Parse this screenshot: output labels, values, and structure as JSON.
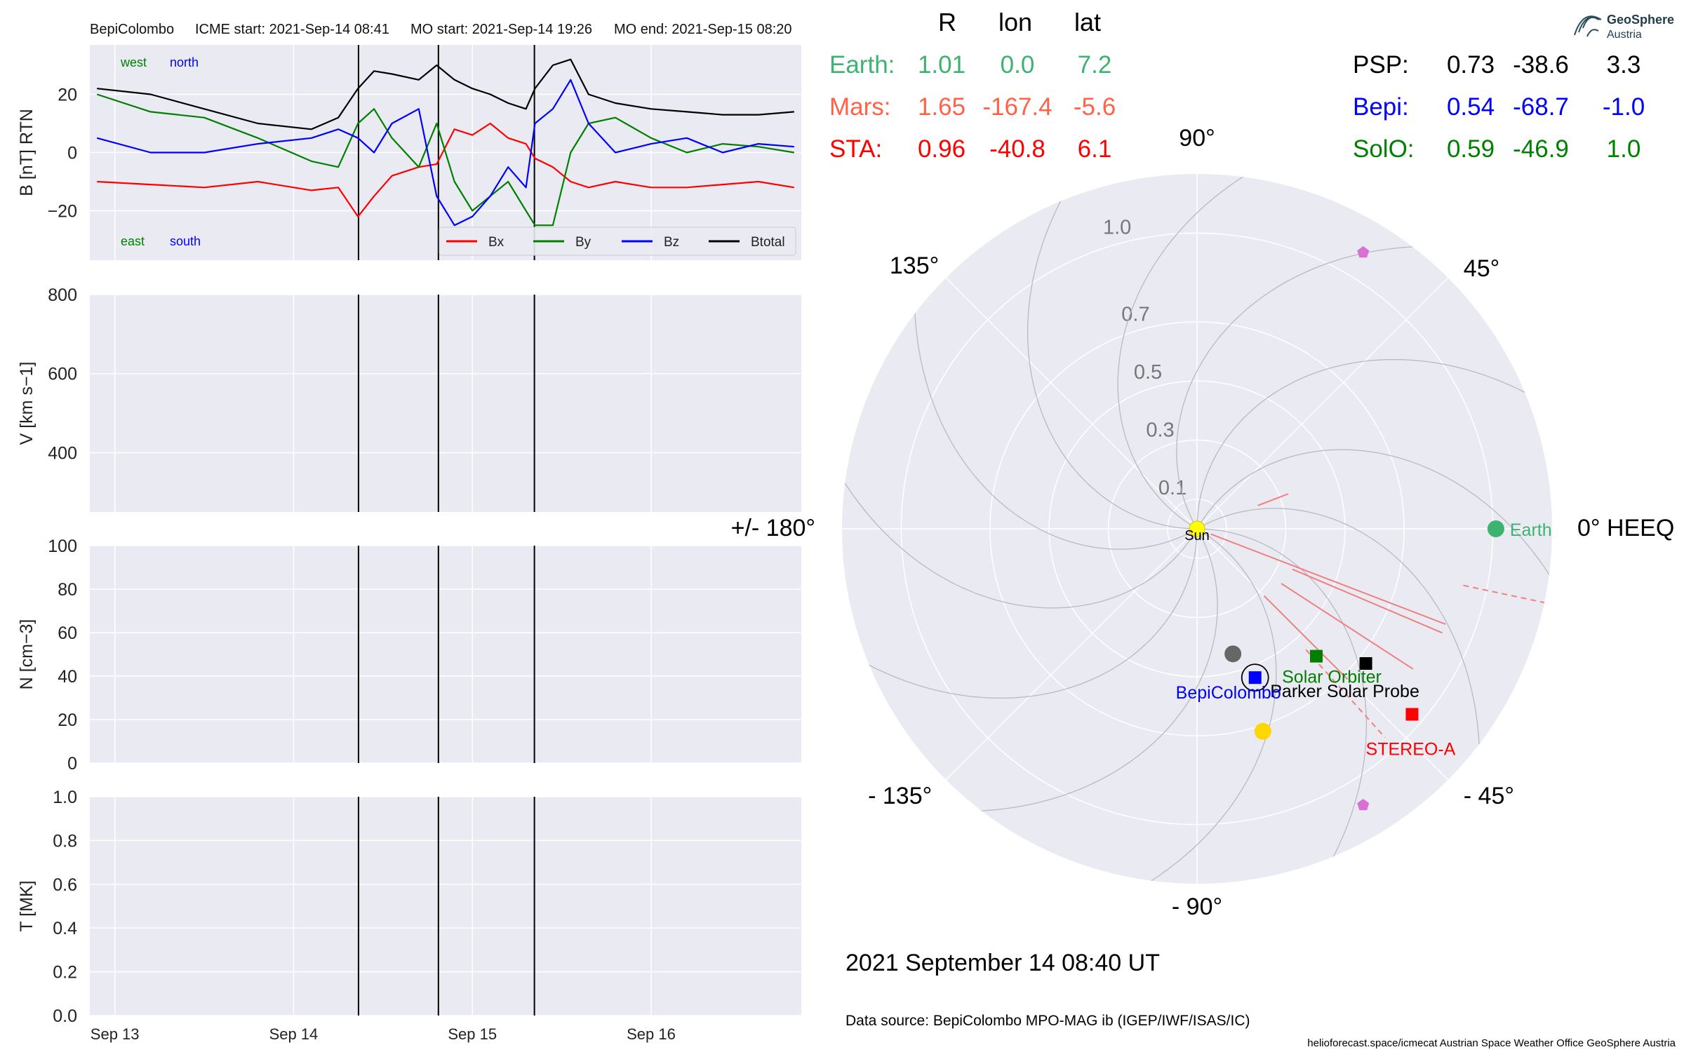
{
  "header": {
    "spacecraft": "BepiColombo",
    "icme_start": "ICME start: 2021-Sep-14 08:41",
    "mo_start": "MO start: 2021-Sep-14 19:26",
    "mo_end": "MO end: 2021-Sep-15 08:20"
  },
  "colors": {
    "panel_bg": "#eaeaf2",
    "grid": "#ffffff",
    "bx": "#ff0000",
    "by": "#008000",
    "bz": "#0000ff",
    "btotal": "#000000",
    "earth": "#3cb371",
    "mars": "#ff6347",
    "sta": "#ff0000",
    "psp": "#000000",
    "bepi": "#0000ff",
    "solo": "#008000",
    "sun": "#ffff00",
    "planet": "#da70d6"
  },
  "chart_data": [
    {
      "type": "line",
      "name": "B field",
      "ylabel": "B [nT] RTN",
      "ylim": [
        -37,
        37
      ],
      "yticks": [
        "20",
        "0",
        "−20"
      ],
      "ytick_values": [
        20,
        0,
        -20
      ],
      "xlim_days": [
        12.86,
        16.84
      ],
      "xticks": [
        "Sep 13",
        "Sep 14",
        "Sep 15",
        "Sep 16"
      ],
      "xtick_days": [
        13,
        14,
        15,
        16
      ],
      "annotations": {
        "west": "west",
        "north": "north",
        "east": "east",
        "south": "south"
      },
      "legend": [
        "Bx",
        "By",
        "Bz",
        "Btotal"
      ],
      "legend_position": "lower right",
      "event_lines_days": [
        14.363,
        14.81,
        15.347
      ],
      "series": [
        {
          "name": "Bx",
          "x": [
            12.9,
            13.2,
            13.5,
            13.8,
            14.1,
            14.25,
            14.36,
            14.45,
            14.55,
            14.7,
            14.8,
            14.9,
            15.0,
            15.1,
            15.2,
            15.3,
            15.35,
            15.45,
            15.55,
            15.65,
            15.8,
            16.0,
            16.2,
            16.4,
            16.6,
            16.8
          ],
          "y": [
            -10,
            -11,
            -12,
            -10,
            -13,
            -12,
            -22,
            -15,
            -8,
            -5,
            -4,
            8,
            6,
            10,
            5,
            3,
            -2,
            -5,
            -10,
            -12,
            -10,
            -12,
            -12,
            -11,
            -10,
            -12
          ]
        },
        {
          "name": "By",
          "x": [
            12.9,
            13.2,
            13.5,
            13.8,
            14.1,
            14.25,
            14.36,
            14.45,
            14.55,
            14.7,
            14.8,
            14.9,
            15.0,
            15.1,
            15.2,
            15.3,
            15.35,
            15.45,
            15.55,
            15.65,
            15.8,
            16.0,
            16.2,
            16.4,
            16.6,
            16.8
          ],
          "y": [
            20,
            14,
            12,
            5,
            -3,
            -5,
            10,
            15,
            5,
            -5,
            10,
            -10,
            -20,
            -15,
            -10,
            -20,
            -25,
            -25,
            0,
            10,
            12,
            5,
            0,
            3,
            2,
            0
          ]
        },
        {
          "name": "Bz",
          "x": [
            12.9,
            13.2,
            13.5,
            13.8,
            14.1,
            14.25,
            14.36,
            14.45,
            14.55,
            14.7,
            14.8,
            14.9,
            15.0,
            15.1,
            15.2,
            15.3,
            15.35,
            15.45,
            15.55,
            15.65,
            15.8,
            16.0,
            16.2,
            16.4,
            16.6,
            16.8
          ],
          "y": [
            5,
            0,
            0,
            3,
            5,
            8,
            5,
            0,
            10,
            15,
            -15,
            -25,
            -22,
            -15,
            -5,
            -12,
            10,
            15,
            25,
            10,
            0,
            3,
            5,
            0,
            3,
            2
          ]
        },
        {
          "name": "Btotal",
          "x": [
            12.9,
            13.2,
            13.5,
            13.8,
            14.1,
            14.25,
            14.36,
            14.45,
            14.55,
            14.7,
            14.8,
            14.9,
            15.0,
            15.1,
            15.2,
            15.3,
            15.35,
            15.45,
            15.55,
            15.65,
            15.8,
            16.0,
            16.2,
            16.4,
            16.6,
            16.8
          ],
          "y": [
            22,
            20,
            15,
            10,
            8,
            12,
            22,
            28,
            27,
            25,
            30,
            25,
            22,
            20,
            17,
            15,
            22,
            30,
            32,
            20,
            17,
            15,
            14,
            13,
            13,
            14
          ]
        }
      ]
    },
    {
      "type": "line",
      "name": "Speed",
      "ylabel": "V [km s−1]",
      "ylim": [
        250,
        800
      ],
      "yticks": [
        "800",
        "600",
        "400"
      ],
      "ytick_values": [
        800,
        600,
        400
      ],
      "series": []
    },
    {
      "type": "line",
      "name": "Density",
      "ylabel": "N [cm−3]",
      "ylim": [
        0,
        100
      ],
      "yticks": [
        "100",
        "80",
        "60",
        "40",
        "20",
        "0"
      ],
      "ytick_values": [
        100,
        80,
        60,
        40,
        20,
        0
      ],
      "series": []
    },
    {
      "type": "line",
      "name": "Temperature",
      "ylabel": "T [MK]",
      "ylim": [
        0,
        1
      ],
      "yticks": [
        "1.0",
        "0.8",
        "0.6",
        "0.4",
        "0.2",
        "0.0"
      ],
      "ytick_values": [
        1.0,
        0.8,
        0.6,
        0.4,
        0.2,
        0.0
      ],
      "series": []
    },
    {
      "type": "scatter",
      "name": "Heliosphere position plot (HEEQ polar)",
      "rlim": [
        0,
        1.2
      ],
      "r_ticks": [
        "0.1",
        "0.3",
        "0.5",
        "0.7",
        "1.0"
      ],
      "r_tick_values": [
        0.1,
        0.3,
        0.5,
        0.7,
        1.0
      ],
      "angle_labels": [
        {
          "deg": 0,
          "label": "0° HEEQ"
        },
        {
          "deg": 45,
          "label": "45°"
        },
        {
          "deg": 90,
          "label": "90°"
        },
        {
          "deg": 135,
          "label": "135°"
        },
        {
          "deg": 180,
          "label": "+/- 180°"
        },
        {
          "deg": -135,
          "label": "- 135°"
        },
        {
          "deg": -90,
          "label": "- 90°"
        },
        {
          "deg": -45,
          "label": "- 45°"
        }
      ],
      "bodies": [
        {
          "key": "sun",
          "label": "Sun",
          "r": 0.0,
          "lon": 0.0,
          "marker": "circle",
          "color": "#ffff00"
        },
        {
          "key": "earth",
          "label": "Earth",
          "r": 1.01,
          "lon": 0.0,
          "marker": "circle",
          "color": "#3cb371"
        },
        {
          "key": "sta",
          "label": "STEREO-A",
          "r": 0.96,
          "lon": -40.8,
          "marker": "square",
          "color": "#ff0000"
        },
        {
          "key": "psp",
          "label": "Parker Solar Probe",
          "r": 0.73,
          "lon": -38.6,
          "marker": "square",
          "color": "#000000"
        },
        {
          "key": "solo",
          "label": "Solar Orbiter",
          "r": 0.59,
          "lon": -46.9,
          "marker": "square",
          "color": "#008000"
        },
        {
          "key": "bepi",
          "label": "BepiColombo",
          "r": 0.54,
          "lon": -68.7,
          "marker": "square",
          "color": "#0000ff"
        },
        {
          "key": "mercury",
          "label": "",
          "r": 0.44,
          "lon": -74.0,
          "marker": "circle",
          "color": "#666666"
        },
        {
          "key": "venus",
          "label": "",
          "r": 0.72,
          "lon": -72.0,
          "marker": "circle",
          "color": "#ffd700"
        },
        {
          "key": "planet_a",
          "label": "",
          "r": 1.09,
          "lon": 59.0,
          "marker": "pentagon",
          "color": "#da70d6"
        },
        {
          "key": "planet_b",
          "label": "",
          "r": 1.09,
          "lon": -59.0,
          "marker": "pentagon",
          "color": "#da70d6"
        }
      ],
      "icme_fronts": [
        {
          "lon": -21.0,
          "r1": 0.05,
          "r2": 0.9,
          "style": "solid"
        },
        {
          "lon": -45.0,
          "r1": 0.32,
          "r2": 0.72,
          "style": "solid"
        },
        {
          "lon": 21.0,
          "r1": 0.22,
          "r2": 0.33,
          "style": "solid"
        },
        {
          "lon": -33.0,
          "r1": 0.34,
          "r2": 0.87,
          "style": "solid"
        },
        {
          "lon": -23.0,
          "r1": 0.35,
          "r2": 0.9,
          "style": "solid"
        },
        {
          "lon": -12.0,
          "r1": 0.92,
          "r2": 1.2,
          "style": "dashed"
        },
        {
          "lon": -48.0,
          "r1": 0.55,
          "r2": 0.95,
          "style": "dashed"
        }
      ]
    }
  ],
  "positions_table": {
    "columns": [
      "R",
      "lon",
      "lat"
    ],
    "left": [
      {
        "name": "Earth:",
        "r": "1.01",
        "lon": "0.0",
        "lat": "7.2",
        "color": "#3cb371"
      },
      {
        "name": "Mars:",
        "r": "1.65",
        "lon": "-167.4",
        "lat": "-5.6",
        "color": "#ff6347"
      },
      {
        "name": "STA:",
        "r": "0.96",
        "lon": "-40.8",
        "lat": "6.1",
        "color": "#ff0000"
      }
    ],
    "right": [
      {
        "name": "PSP:",
        "r": "0.73",
        "lon": "-38.6",
        "lat": "3.3",
        "color": "#000000"
      },
      {
        "name": "Bepi:",
        "r": "0.54",
        "lon": "-68.7",
        "lat": "-1.0",
        "color": "#0000ff"
      },
      {
        "name": "SolO:",
        "r": "0.59",
        "lon": "-46.9",
        "lat": "1.0",
        "color": "#008000"
      }
    ]
  },
  "logo": {
    "name_line1": "GeoSphere",
    "name_line2": "Austria"
  },
  "footer": {
    "datetime": "2021 September 14  08:40 UT",
    "data_source": "Data source: BepiColombo MPO-MAG ib (IGEP/IWF/ISAS/IC)",
    "credits": "helioforecast.space/icmecat   Austrian Space Weather Office   GeoSphere Austria"
  }
}
